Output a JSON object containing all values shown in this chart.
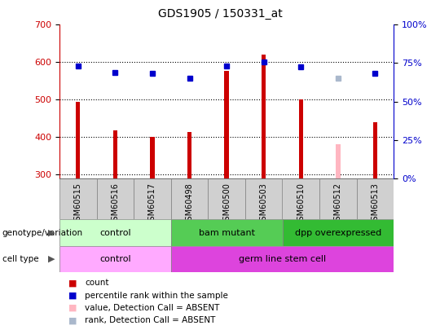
{
  "title": "GDS1905 / 150331_at",
  "samples": [
    "GSM60515",
    "GSM60516",
    "GSM60517",
    "GSM60498",
    "GSM60500",
    "GSM60503",
    "GSM60510",
    "GSM60512",
    "GSM60513"
  ],
  "count_values": [
    493,
    418,
    400,
    413,
    577,
    620,
    501,
    null,
    440
  ],
  "count_absent_values": [
    null,
    null,
    null,
    null,
    null,
    null,
    null,
    380,
    null
  ],
  "percentile_values": [
    590,
    572,
    570,
    558,
    590,
    600,
    587,
    null,
    570
  ],
  "percentile_absent_values": [
    null,
    null,
    null,
    null,
    null,
    null,
    null,
    558,
    null
  ],
  "ylim_left": [
    290,
    700
  ],
  "ylim_right": [
    0,
    100
  ],
  "yticks_left": [
    300,
    400,
    500,
    600,
    700
  ],
  "yticks_right": [
    0,
    25,
    50,
    75,
    100
  ],
  "bar_color": "#cc0000",
  "bar_absent_color": "#ffb6c1",
  "dot_color": "#0000cc",
  "dot_absent_color": "#aab8cc",
  "background_color": "#ffffff",
  "plot_bg": "#ffffff",
  "sample_cell_bg": "#d0d0d0",
  "genotype_groups": [
    {
      "label": "control",
      "start": 0,
      "end": 3,
      "color": "#ccffcc"
    },
    {
      "label": "bam mutant",
      "start": 3,
      "end": 6,
      "color": "#55cc55"
    },
    {
      "label": "dpp overexpressed",
      "start": 6,
      "end": 9,
      "color": "#33bb33"
    }
  ],
  "cell_groups": [
    {
      "label": "control",
      "start": 0,
      "end": 3,
      "color": "#ffaaff"
    },
    {
      "label": "germ line stem cell",
      "start": 3,
      "end": 9,
      "color": "#dd44dd"
    }
  ],
  "genotype_label": "genotype/variation",
  "cell_label": "cell type",
  "legend_items": [
    {
      "color": "#cc0000",
      "label": "count"
    },
    {
      "color": "#0000cc",
      "label": "percentile rank within the sample"
    },
    {
      "color": "#ffb6c1",
      "label": "value, Detection Call = ABSENT"
    },
    {
      "color": "#aab8cc",
      "label": "rank, Detection Call = ABSENT"
    }
  ]
}
